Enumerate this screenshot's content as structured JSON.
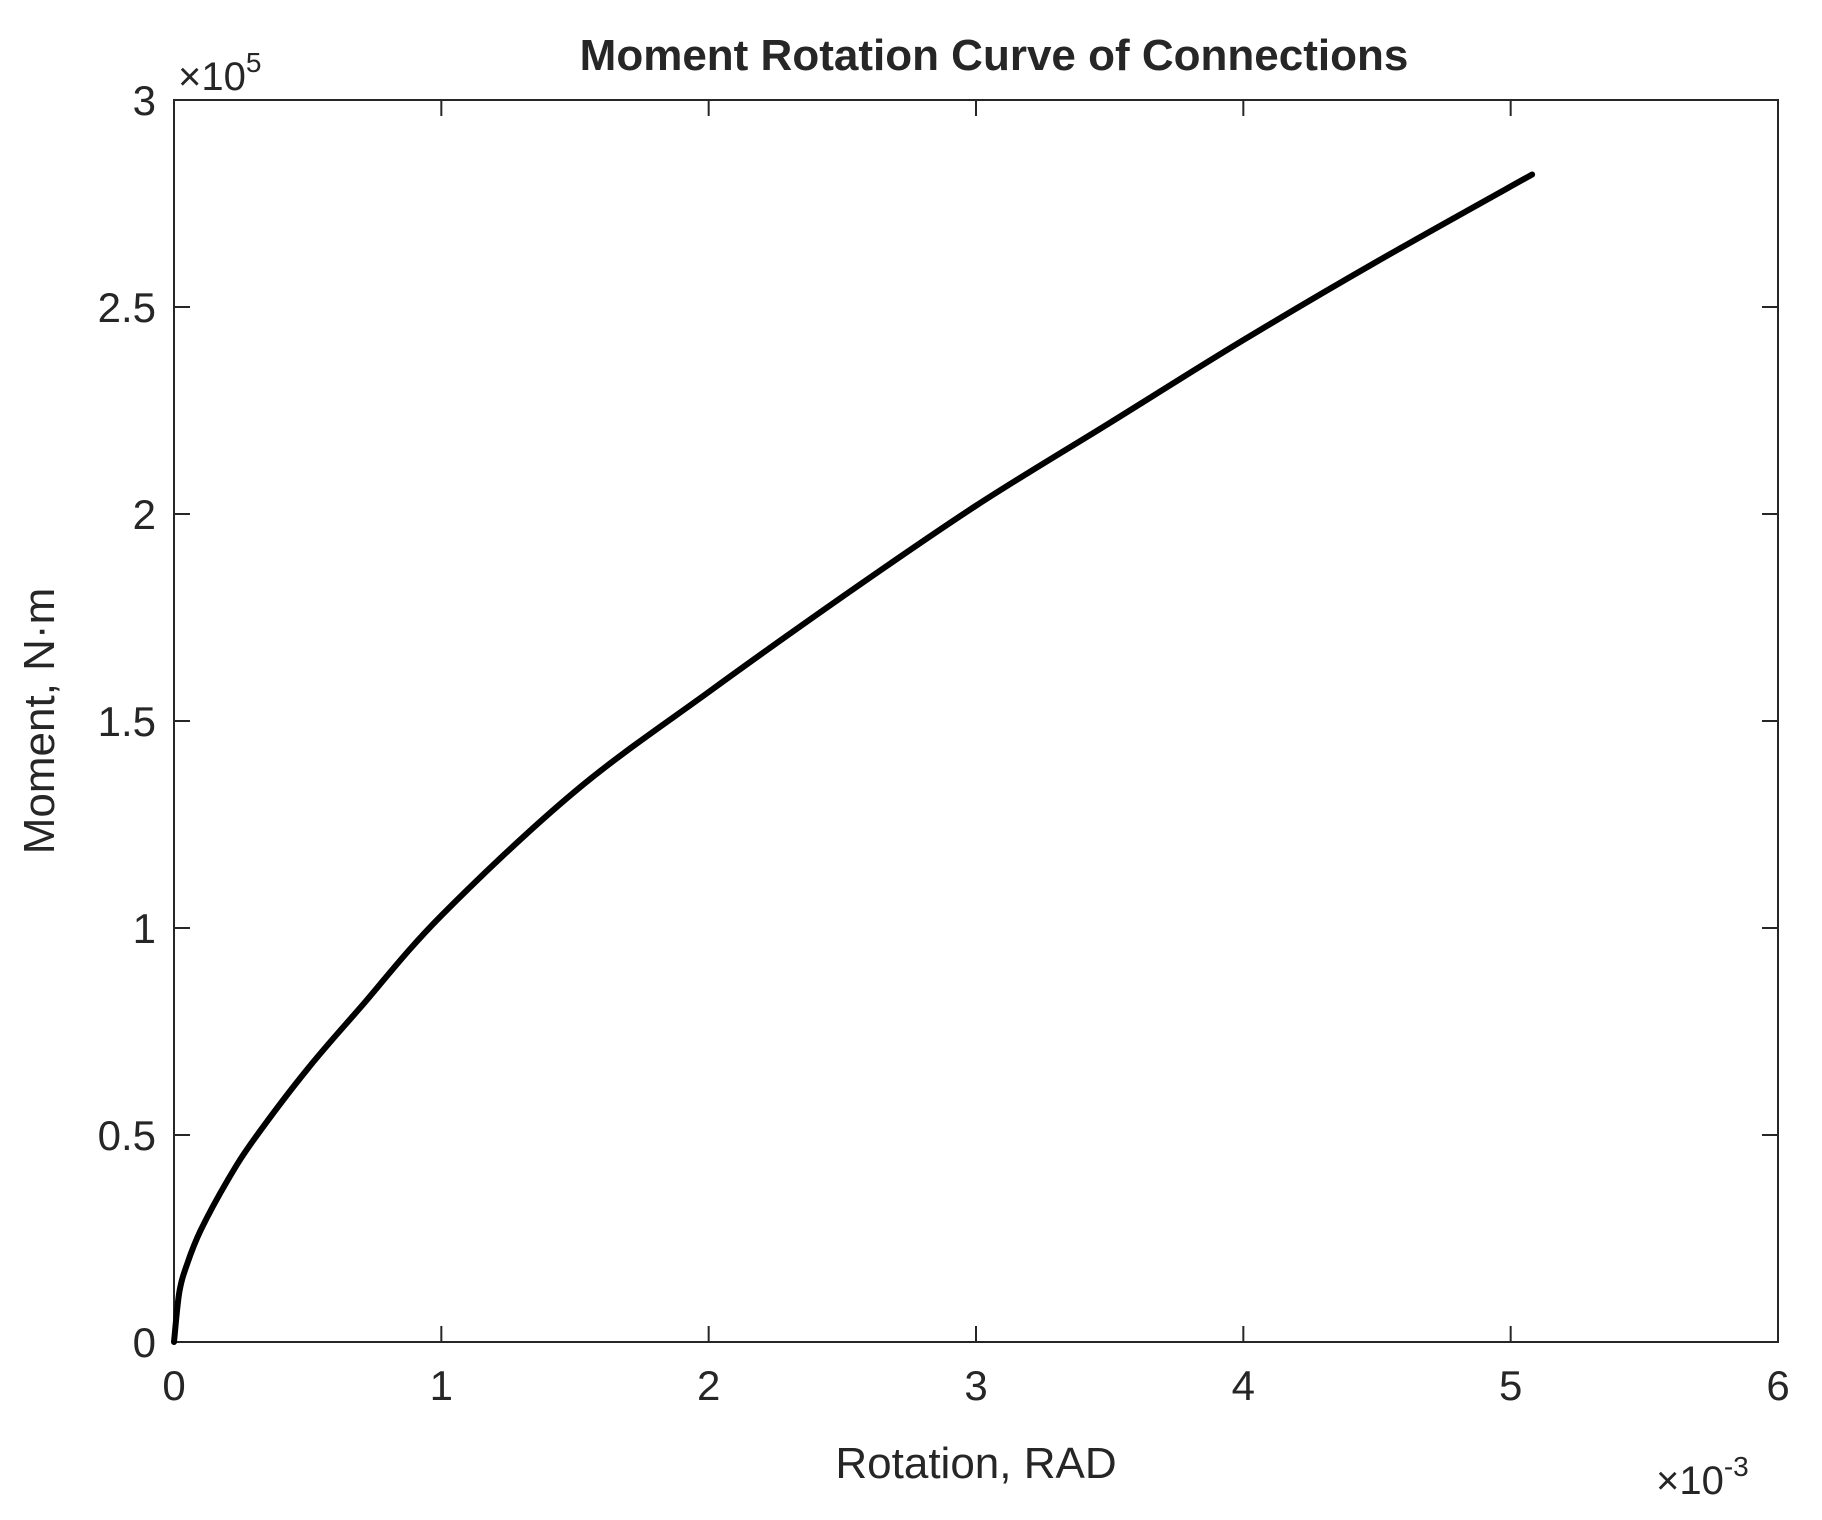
{
  "chart_data": {
    "type": "line",
    "title": "Moment Rotation Curve of Connections",
    "xlabel": "Rotation, RAD",
    "ylabel": "Moment,  N·m",
    "x_multiplier": "×10-3",
    "x_multiplier_base": "×10",
    "x_multiplier_exp": "-3",
    "y_multiplier": "×105",
    "y_multiplier_base": "×10",
    "y_multiplier_exp": "5",
    "xlim": [
      0,
      6
    ],
    "ylim": [
      0,
      3
    ],
    "xticks": [
      0,
      1,
      2,
      3,
      4,
      5,
      6
    ],
    "xtick_labels": [
      "0",
      "1",
      "2",
      "3",
      "4",
      "5",
      "6"
    ],
    "yticks": [
      0,
      0.5,
      1,
      1.5,
      2,
      2.5,
      3
    ],
    "ytick_labels": [
      "0",
      "0.5",
      "1",
      "1.5",
      "2",
      "2.5",
      "3"
    ],
    "grid": false,
    "line_color": "#000000",
    "series": [
      {
        "x": [
          0,
          0.02,
          0.05,
          0.1,
          0.2,
          0.3,
          0.5,
          0.7,
          1.0,
          1.5,
          2.0,
          2.5,
          3.0,
          3.5,
          4.0,
          4.5,
          5.08
        ],
        "y": [
          0,
          0.12,
          0.19,
          0.27,
          0.39,
          0.49,
          0.66,
          0.81,
          1.03,
          1.33,
          1.57,
          1.8,
          2.02,
          2.22,
          2.42,
          2.61,
          2.82
        ]
      }
    ]
  }
}
